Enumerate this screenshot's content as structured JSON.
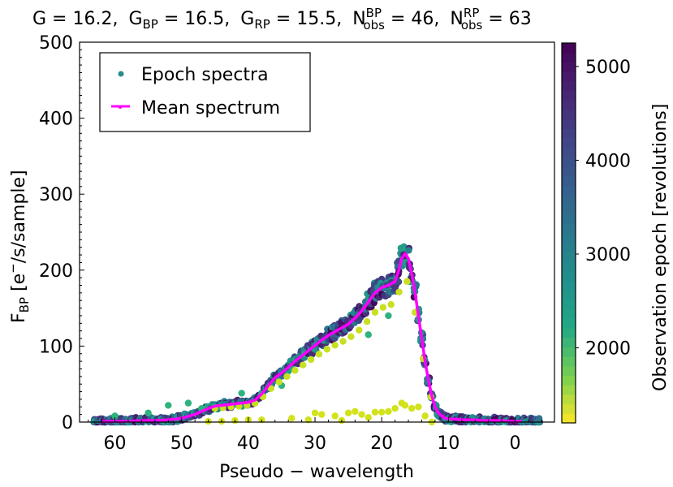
{
  "chart_data": {
    "type": "scatter",
    "title_parts": {
      "G": "G = 16.2,",
      "G_BP_base": "G",
      "G_BP_sub": "BP",
      "G_BP_val": " = 16.5,",
      "G_RP_base": "G",
      "G_RP_sub": "RP",
      "G_RP_val": " = 15.5,",
      "N_BP_base": "N",
      "N_BP_sup": "BP",
      "N_BP_sub": "obs",
      "N_BP_val": " = 46,",
      "N_RP_base": "N",
      "N_RP_sup": "RP",
      "N_RP_sub": "obs",
      "N_RP_val": " = 63"
    },
    "xlabel": "Pseudo − wavelength",
    "ylabel_parts": {
      "base": "F",
      "sub": "BP",
      "unit_a": " [e",
      "unit_sup": "−",
      "unit_b": "/s/sample]"
    },
    "xlim": [
      65.3,
      -5.9
    ],
    "ylim": [
      0,
      500
    ],
    "x_ticks": [
      60,
      50,
      40,
      30,
      20,
      10,
      0
    ],
    "x_tick_labels": [
      "60",
      "50",
      "40",
      "30",
      "20",
      "10",
      "0"
    ],
    "y_ticks": [
      0,
      100,
      200,
      300,
      400,
      500
    ],
    "y_tick_labels": [
      "0",
      "100",
      "200",
      "300",
      "400",
      "500"
    ],
    "grid": false,
    "legend": {
      "placement": "top-left",
      "entries": [
        {
          "label": "Epoch spectra",
          "marker": "dot",
          "color": "#2a8c8c"
        },
        {
          "label": "Mean spectrum",
          "marker": "line",
          "color": "#ff00ff"
        }
      ]
    },
    "colorbar": {
      "label": "Observation epoch [revolutions]",
      "range": [
        1200,
        5250
      ],
      "ticks": [
        2000,
        3000,
        4000,
        5000
      ],
      "tick_labels": [
        "2000",
        "3000",
        "4000",
        "5000"
      ],
      "colormap": "viridis"
    },
    "mean_spectrum": {
      "x": [
        62,
        60,
        58,
        56,
        54,
        52,
        50,
        48,
        47,
        46,
        45,
        44,
        43,
        42,
        41,
        40,
        39,
        38,
        37,
        36,
        35,
        34,
        33,
        32,
        31,
        30,
        29,
        28,
        27,
        26,
        25,
        24,
        23,
        22,
        21,
        20,
        19,
        18,
        17.5,
        17,
        16.5,
        16,
        15.5,
        15,
        14.5,
        14,
        13.5,
        13,
        12.5,
        12,
        11.5,
        11,
        10.5,
        10,
        9,
        8,
        7,
        6,
        5,
        4,
        3,
        2,
        1,
        0,
        -1
      ],
      "y": [
        1,
        1,
        1,
        2,
        2,
        3,
        5,
        10,
        14,
        18,
        21,
        22,
        23,
        24,
        25,
        26,
        29,
        37,
        48,
        58,
        65,
        72,
        80,
        87,
        94,
        101,
        108,
        114,
        119,
        124,
        129,
        137,
        146,
        158,
        170,
        177,
        180,
        185,
        198,
        215,
        222,
        215,
        195,
        170,
        140,
        110,
        80,
        55,
        35,
        20,
        12,
        8,
        5,
        4,
        4,
        3,
        3,
        3,
        2,
        2,
        2,
        2,
        1,
        1,
        1
      ],
      "color": "#ff00ff"
    },
    "epoch_spread": {
      "note": "46 epoch spectra scattered around the mean, colored by epoch; scatter width ~ +/- 8% plus a few low-epoch outliers",
      "outlier_epoch_low_y": [
        [
          33.5,
          5
        ],
        [
          31,
          3
        ],
        [
          30,
          12
        ],
        [
          29,
          10
        ],
        [
          27,
          8
        ],
        [
          26,
          2
        ],
        [
          25,
          12
        ],
        [
          24,
          14
        ],
        [
          23,
          10
        ],
        [
          22,
          6
        ],
        [
          21,
          13
        ],
        [
          20,
          13
        ],
        [
          19,
          14
        ],
        [
          18,
          18
        ],
        [
          17,
          25
        ],
        [
          16.5,
          22
        ],
        [
          15.5,
          18
        ],
        [
          14.5,
          20
        ],
        [
          13.5,
          8
        ],
        [
          12.5,
          0
        ],
        [
          38,
          3
        ],
        [
          40,
          3
        ],
        [
          42,
          2
        ],
        [
          44,
          1
        ],
        [
          46,
          1
        ]
      ]
    }
  }
}
